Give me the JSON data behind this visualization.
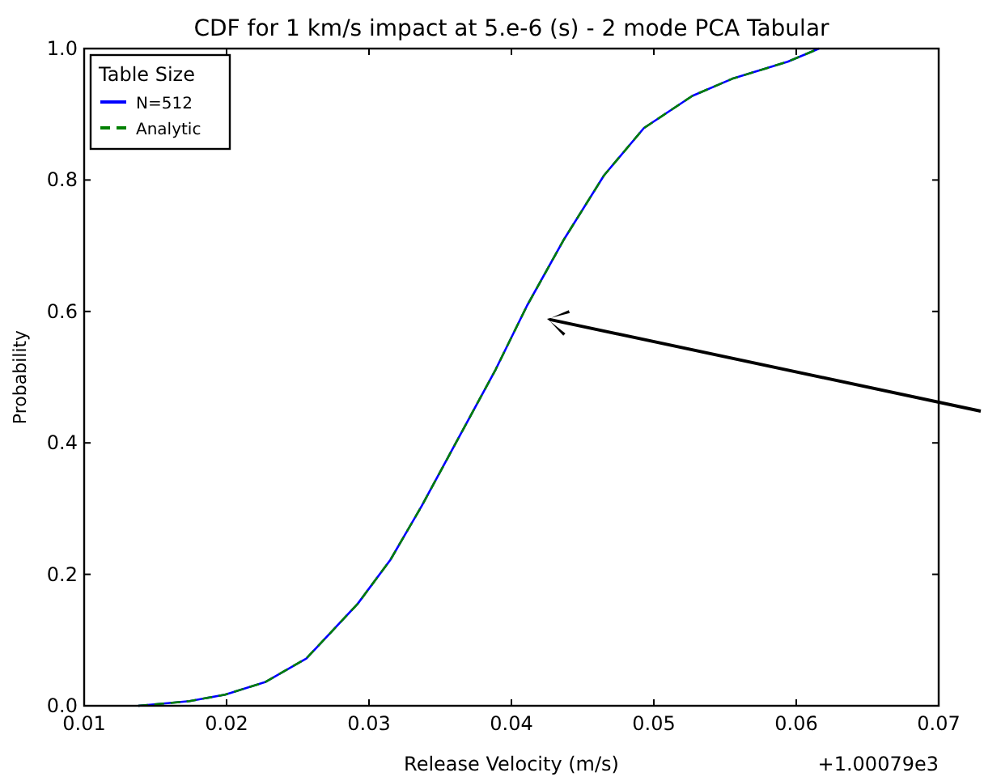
{
  "chart_data": {
    "type": "line",
    "title": "CDF for 1 km/s impact at 5.e-6 (s) - 2 mode PCA Tabular",
    "xlabel": "Release Velocity (m/s)",
    "ylabel": "Probability",
    "legend_title": "Table Size",
    "annotations": [
      "+1.00079e3"
    ],
    "x": [
      0.0138,
      0.0154,
      0.0174,
      0.0199,
      0.0227,
      0.0256,
      0.0292,
      0.0315,
      0.0337,
      0.0361,
      0.0389,
      0.0411,
      0.0437,
      0.0465,
      0.0493,
      0.0527,
      0.0555,
      0.0594,
      0.0616
    ],
    "series": [
      {
        "name": "N=512",
        "color": "#0000ff",
        "line_style": "solid",
        "values": [
          0,
          0.003,
          0.007,
          0.017,
          0.036,
          0.072,
          0.155,
          0.222,
          0.304,
          0.4,
          0.512,
          0.609,
          0.71,
          0.807,
          0.879,
          0.928,
          0.954,
          0.98,
          1.0
        ]
      },
      {
        "name": "Analytic",
        "color": "#008000",
        "line_style": "dashed",
        "values": [
          0,
          0.003,
          0.007,
          0.017,
          0.036,
          0.072,
          0.155,
          0.222,
          0.304,
          0.4,
          0.512,
          0.609,
          0.71,
          0.807,
          0.879,
          0.928,
          0.954,
          0.98,
          1.0
        ]
      }
    ],
    "xlim": [
      0.01,
      0.07
    ],
    "xticks": [
      0.01,
      0.02,
      0.03,
      0.04,
      0.05,
      0.06,
      0.07
    ],
    "ylim": [
      0,
      1
    ],
    "yticks": [
      {
        "value": 0,
        "label": "0.0"
      },
      0.2,
      0.4,
      0.6,
      0.8,
      {
        "value": 1,
        "label": "1.0"
      }
    ],
    "grid": false,
    "legend": "top left"
  }
}
